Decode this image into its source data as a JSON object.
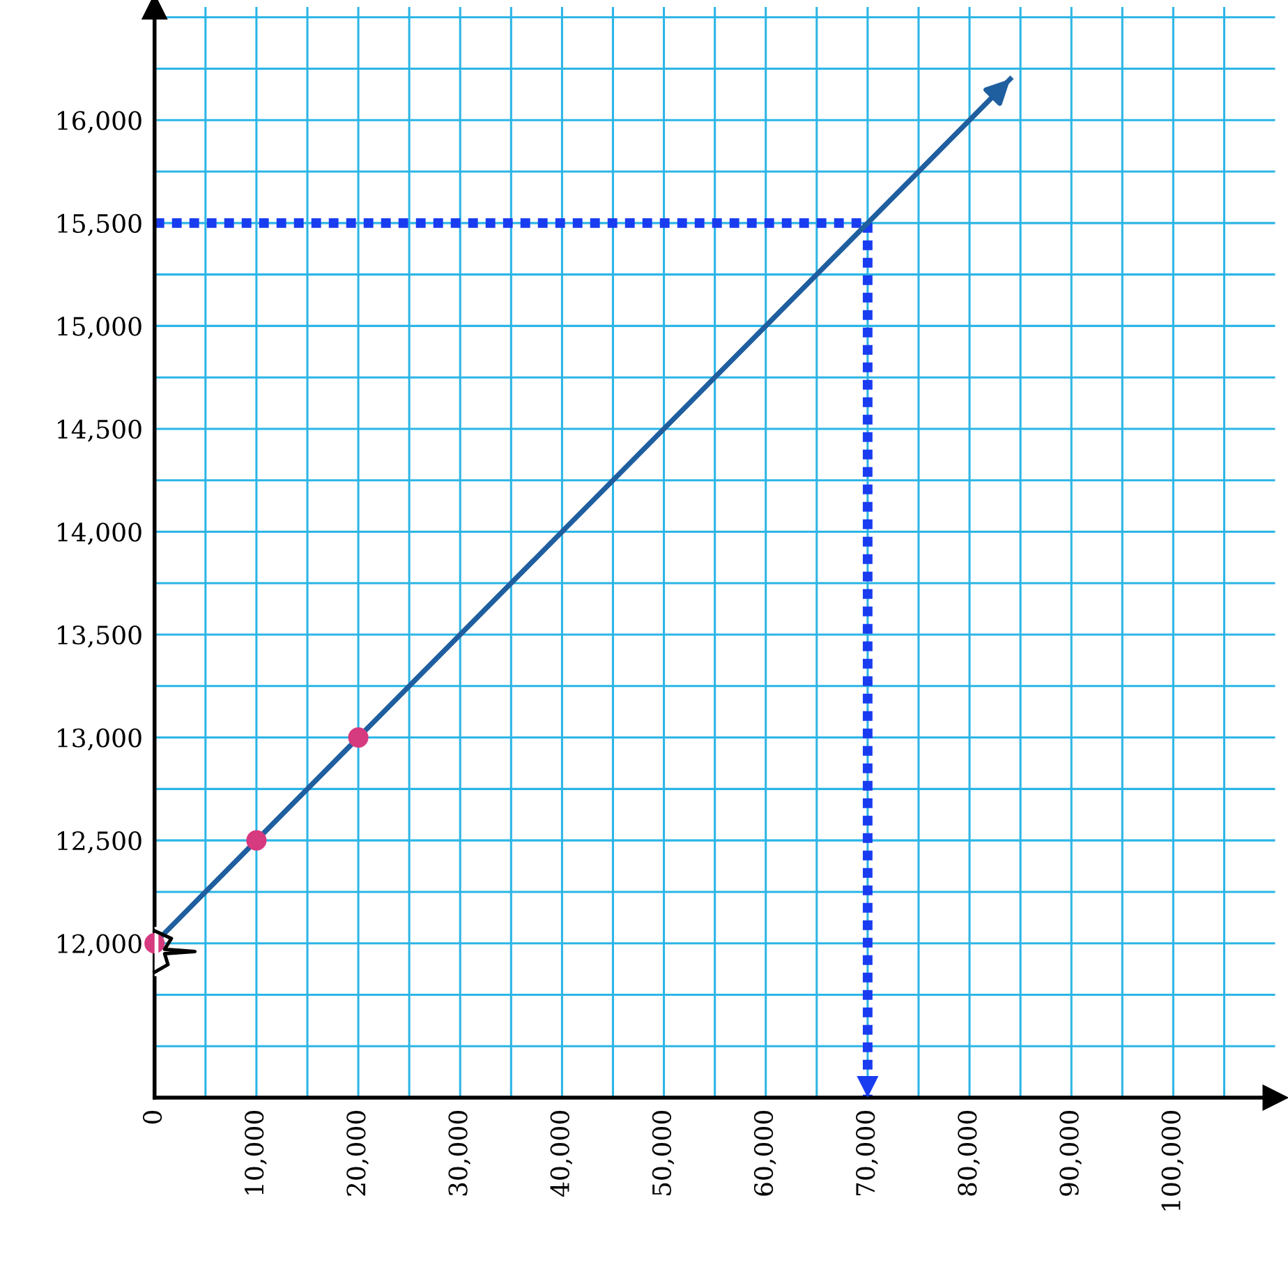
{
  "chart_data": {
    "type": "line",
    "series": [
      {
        "x": [
          0,
          84000
        ],
        "values": [
          12000,
          16200
        ],
        "color": "#1f5fa0",
        "marker": "none",
        "line_style": "solid"
      },
      {
        "type": "scatter",
        "x": [
          0,
          10000,
          20000
        ],
        "values": [
          12000,
          12500,
          13000
        ],
        "color": "#d63a7f",
        "marker": "circle"
      }
    ],
    "xlim": [
      0,
      110000
    ],
    "ylim": [
      11250,
      16550
    ],
    "xticks": [
      0,
      {
        "value": 5000,
        "label": null
      },
      {
        "value": 10000,
        "label": "10,000"
      },
      {
        "value": 15000,
        "label": null
      },
      {
        "value": 20000,
        "label": "20,000"
      },
      {
        "value": 25000,
        "label": null
      },
      {
        "value": 30000,
        "label": "30,000"
      },
      {
        "value": 35000,
        "label": null
      },
      {
        "value": 40000,
        "label": "40,000"
      },
      {
        "value": 45000,
        "label": null
      },
      {
        "value": 50000,
        "label": "50,000"
      },
      {
        "value": 55000,
        "label": null
      },
      {
        "value": 60000,
        "label": "60,000"
      },
      {
        "value": 65000,
        "label": null
      },
      {
        "value": 70000,
        "label": "70,000"
      },
      {
        "value": 75000,
        "label": null
      },
      {
        "value": 80000,
        "label": "80,000"
      },
      {
        "value": 85000,
        "label": null
      },
      {
        "value": 90000,
        "label": "90,000"
      },
      {
        "value": 95000,
        "label": null
      },
      {
        "value": 100000,
        "label": "100,000"
      },
      {
        "value": 105000,
        "label": null
      }
    ],
    "yticks": [
      {
        "value": 11500,
        "label": null
      },
      {
        "value": 11750,
        "label": null
      },
      {
        "value": 12000,
        "label": "12,000"
      },
      {
        "value": 12250,
        "label": null
      },
      {
        "value": 12500,
        "label": "12,500"
      },
      {
        "value": 12750,
        "label": null
      },
      {
        "value": 13000,
        "label": "13,000"
      },
      {
        "value": 13250,
        "label": null
      },
      {
        "value": 13500,
        "label": "13,500"
      },
      {
        "value": 13750,
        "label": null
      },
      {
        "value": 14000,
        "label": "14,000"
      },
      {
        "value": 14250,
        "label": null
      },
      {
        "value": 14500,
        "label": "14,500"
      },
      {
        "value": 14750,
        "label": null
      },
      {
        "value": 15000,
        "label": "15,000"
      },
      {
        "value": 15250,
        "label": null
      },
      {
        "value": 15500,
        "label": "15,500"
      },
      {
        "value": 15750,
        "label": null
      },
      {
        "value": 16000,
        "label": "16,000"
      },
      {
        "value": 16250,
        "label": null
      },
      {
        "value": 16500,
        "label": null
      }
    ],
    "grid": true,
    "ref_lines": [
      {
        "axis": "y",
        "value": 15500,
        "color": "#1a3cf0",
        "line_style": "dotted"
      },
      {
        "axis": "x",
        "value": 70000,
        "color": "#1a3cf0",
        "line_style": "dotted"
      }
    ]
  }
}
